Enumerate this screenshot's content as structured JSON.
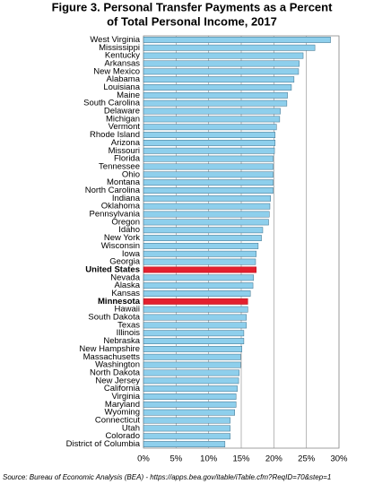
{
  "chart_data": {
    "type": "barh",
    "title": [
      "Figure 3. Personal Transfer Payments as a Percent",
      "of Total Personal Income, 2017"
    ],
    "source": "Source: Bureau of Economic Analysis (BEA) - https://apps.bea.gov/itable/iTable.cfm?ReqID=70&step=1",
    "categories": [
      "West Virginia",
      "Mississippi",
      "Kentucky",
      "Arkansas",
      "New Mexico",
      "Alabama",
      "Louisiana",
      "Maine",
      "South Carolina",
      "Delaware",
      "Michigan",
      "Vermont",
      "Rhode Island",
      "Arizona",
      "Missouri",
      "Florida",
      "Tennessee",
      "Ohio",
      "Montana",
      "North Carolina",
      "Indiana",
      "Oklahoma",
      "Pennsylvania",
      "Oregon",
      "Idaho",
      "New York",
      "Wisconsin",
      "Iowa",
      "Georgia",
      "United States",
      "Nevada",
      "Alaska",
      "Kansas",
      "Minnesota",
      "Hawaii",
      "South Dakota",
      "Texas",
      "Illinois",
      "Nebraska",
      "New Hampshire",
      "Massachusetts",
      "Washington",
      "North Dakota",
      "New Jersey",
      "California",
      "Virginia",
      "Maryland",
      "Wyoming",
      "Connecticut",
      "Utah",
      "Colorado",
      "District of Columbia"
    ],
    "values": [
      28.7,
      26.3,
      24.5,
      23.9,
      23.8,
      23.1,
      22.7,
      22.1,
      22.0,
      21.0,
      20.9,
      20.4,
      20.2,
      20.2,
      20.1,
      19.9,
      19.9,
      19.9,
      19.9,
      19.9,
      19.5,
      19.4,
      19.3,
      19.2,
      18.3,
      18.1,
      17.6,
      17.3,
      17.2,
      17.3,
      16.9,
      16.8,
      16.4,
      16.0,
      16.0,
      15.8,
      15.8,
      15.4,
      15.4,
      15.1,
      14.9,
      14.9,
      14.7,
      14.6,
      14.4,
      14.2,
      14.2,
      14.0,
      13.3,
      13.3,
      13.3,
      12.5
    ],
    "color": "#8ecfec",
    "colors": [
      "#8ecfec",
      "#8ecfec",
      "#8ecfec",
      "#8ecfec",
      "#8ecfec",
      "#8ecfec",
      "#8ecfec",
      "#8ecfec",
      "#8ecfec",
      "#8ecfec",
      "#8ecfec",
      "#8ecfec",
      "#8ecfec",
      "#8ecfec",
      "#8ecfec",
      "#8ecfec",
      "#8ecfec",
      "#8ecfec",
      "#8ecfec",
      "#8ecfec",
      "#8ecfec",
      "#8ecfec",
      "#8ecfec",
      "#8ecfec",
      "#8ecfec",
      "#8ecfec",
      "#8ecfec",
      "#8ecfec",
      "#8ecfec",
      "#e3202e",
      "#8ecfec",
      "#8ecfec",
      "#8ecfec",
      "#e3202e",
      "#8ecfec",
      "#8ecfec",
      "#8ecfec",
      "#8ecfec",
      "#8ecfec",
      "#8ecfec",
      "#8ecfec",
      "#8ecfec",
      "#8ecfec",
      "#8ecfec",
      "#8ecfec",
      "#8ecfec",
      "#8ecfec",
      "#8ecfec",
      "#8ecfec",
      "#8ecfec",
      "#8ecfec",
      "#8ecfec"
    ],
    "xlim": [
      0,
      30
    ],
    "xticks": [
      {
        "value": 0,
        "label": "0%"
      },
      {
        "value": 5,
        "label": "5%"
      },
      {
        "value": 10,
        "label": "10%"
      },
      {
        "value": 15,
        "label": "15%"
      },
      {
        "value": 20,
        "label": "20%"
      },
      {
        "value": 25,
        "label": "25%"
      },
      {
        "value": 30,
        "label": "30%"
      }
    ],
    "grid": true
  }
}
